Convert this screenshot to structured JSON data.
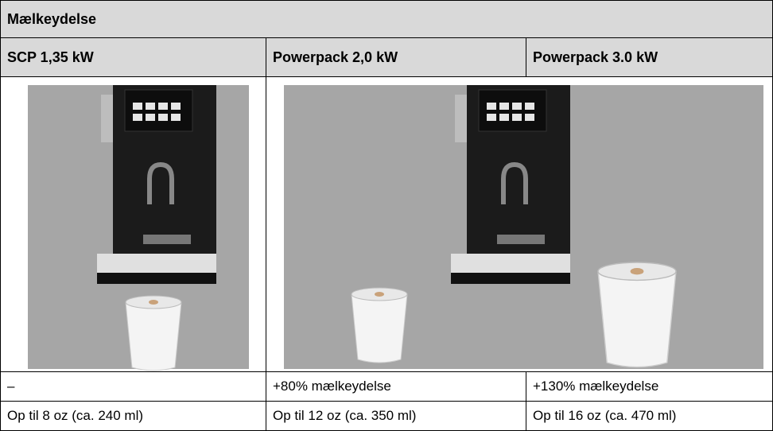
{
  "table": {
    "title": "Mælkeydelse",
    "header": [
      "SCP 1,35 kW",
      "Powerpack 2,0 kW",
      "Powerpack 3.0 kW"
    ],
    "rows": [
      [
        "–",
        "+80% mælkeydelse",
        "+130% mælkeydelse"
      ],
      [
        "Op til 8 oz (ca. 240 ml)",
        "Op til 12 oz (ca. 350 ml)",
        "Op til 16 oz (ca. 470 ml)"
      ]
    ]
  }
}
